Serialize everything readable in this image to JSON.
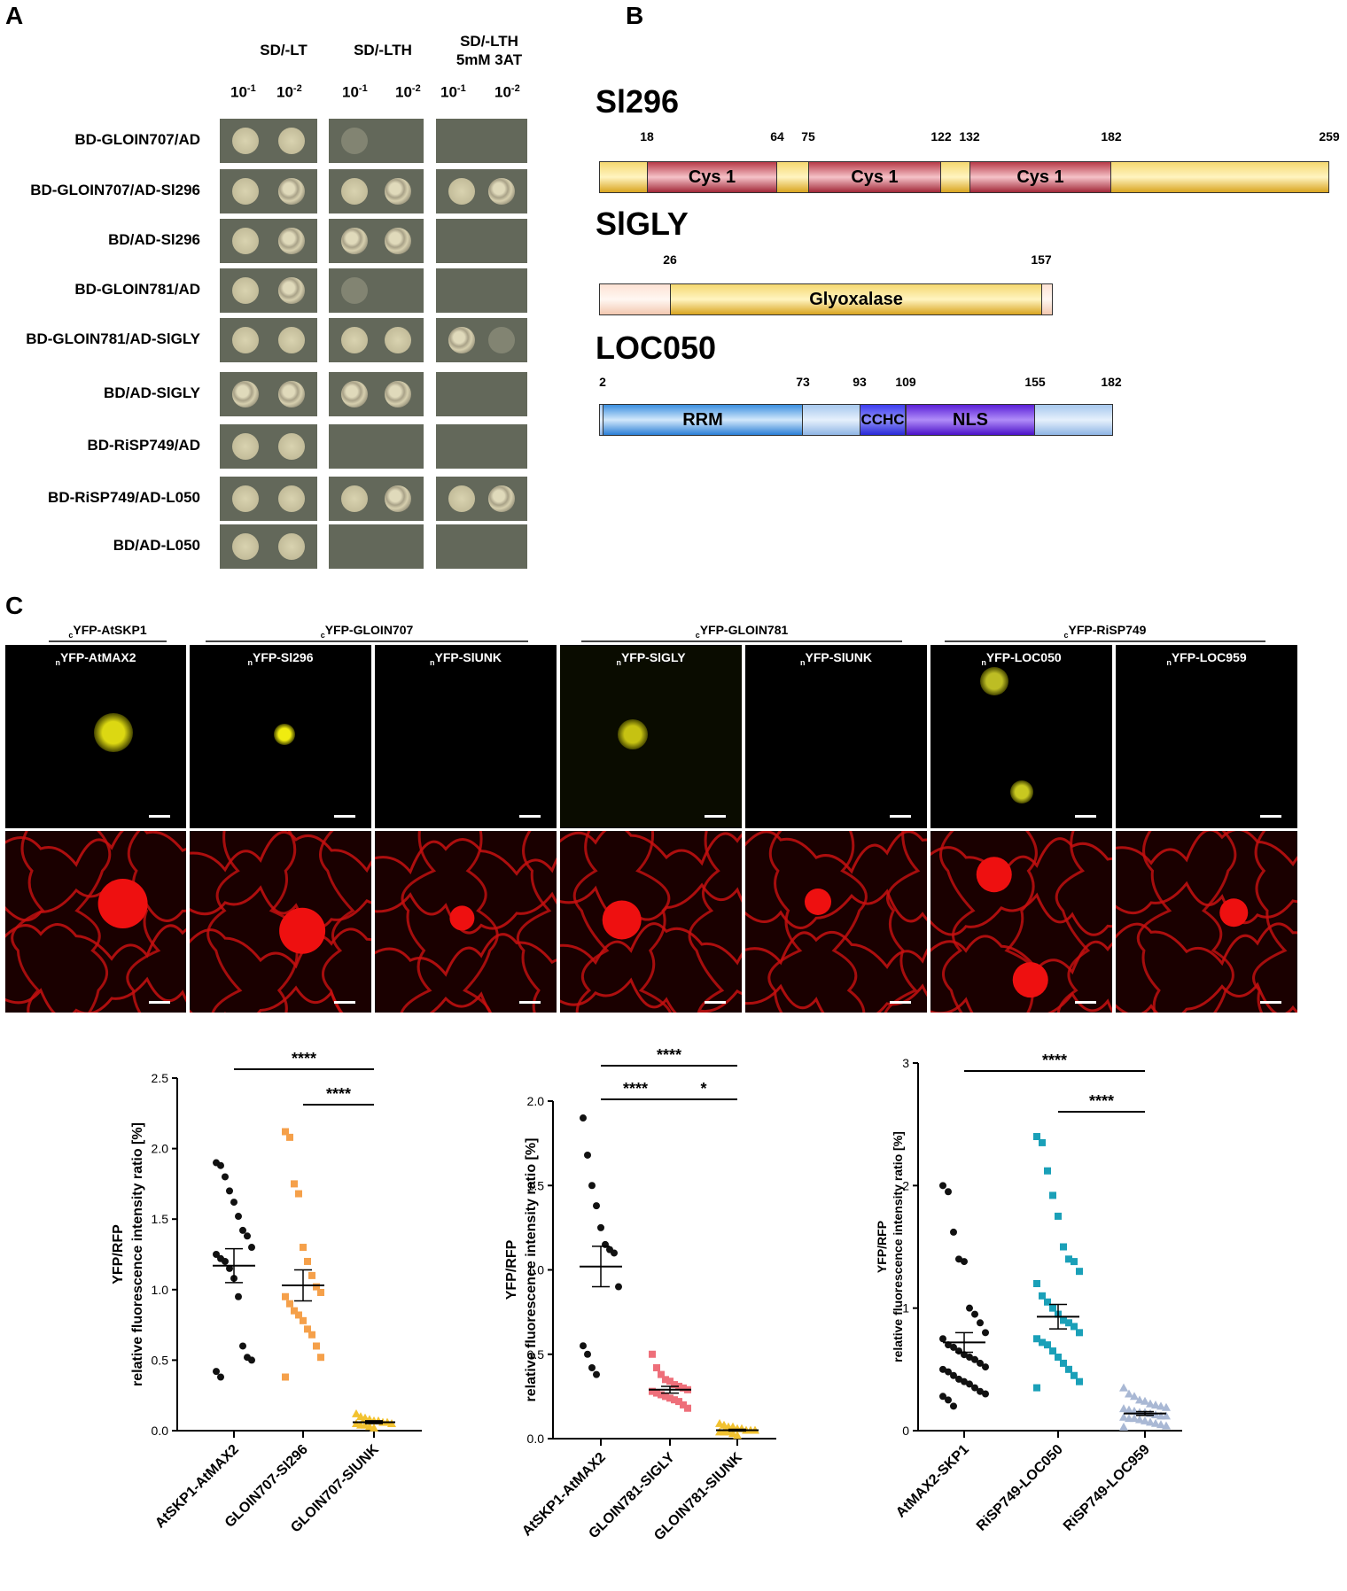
{
  "panel_a": {
    "label": "A",
    "col_headers": [
      "SD/-LT",
      "SD/-LTH",
      "SD/-LTH\n5mM 3AT"
    ],
    "dilution_base": "10",
    "dilution_exp": [
      "-1",
      "-2"
    ],
    "rows": [
      "BD-GLOIN707/AD",
      "BD-GLOIN707/AD-Sl296",
      "BD/AD-Sl296",
      "BD-GLOIN781/AD",
      "BD-GLOIN781/AD-SlGLY",
      "BD/AD-SlGLY",
      "BD-RiSP749/AD",
      "BD-RiSP749/AD-L050",
      "BD/AD-L050"
    ]
  },
  "panel_b": {
    "label": "B",
    "proteins": [
      {
        "name": "Sl296",
        "ticks": [
          "18",
          "64",
          "75",
          "122",
          "132",
          "182",
          "259"
        ],
        "domains": [
          "Cys 1",
          "Cys 1",
          "Cys 1"
        ]
      },
      {
        "name": "SlGLY",
        "ticks": [
          "26",
          "157"
        ],
        "domains": [
          "Glyoxalase"
        ]
      },
      {
        "name": "LOC050",
        "ticks": [
          "2",
          "73",
          "93",
          "109",
          "155",
          "182"
        ],
        "domains": [
          "RRM",
          "CCHC",
          "NLS"
        ]
      }
    ]
  },
  "panel_c": {
    "label": "C",
    "groups": [
      {
        "prefix": "c",
        "text": "YFP-AtSKP1"
      },
      {
        "prefix": "c",
        "text": "YFP-GLOIN707"
      },
      {
        "prefix": "c",
        "text": "YFP-GLOIN781"
      },
      {
        "prefix": "c",
        "text": "YFP-RiSP749"
      }
    ],
    "images": [
      {
        "prefix": "n",
        "text": "YFP-AtMAX2"
      },
      {
        "prefix": "n",
        "text": "YFP-Sl296"
      },
      {
        "prefix": "n",
        "text": "YFP-SlUNK"
      },
      {
        "prefix": "n",
        "text": "YFP-SlGLY"
      },
      {
        "prefix": "n",
        "text": "YFP-SlUNK"
      },
      {
        "prefix": "n",
        "text": "YFP-LOC050"
      },
      {
        "prefix": "n",
        "text": "YFP-LOC959"
      }
    ]
  },
  "chart_data": [
    {
      "type": "scatter",
      "ylabel": "YFP/RFP\nrelative fluorescence intensity ratio [%]",
      "ylim": [
        0,
        2.5
      ],
      "yticks": [
        "0.0",
        "0.5",
        "1.0",
        "1.5",
        "2.0",
        "2.5"
      ],
      "categories": [
        "AtSKP1-AtMAX2",
        "GLOIN707-Sl296",
        "GLOIN707-SlUNK"
      ],
      "colors": [
        "#111111",
        "#f5a04a",
        "#f2c230"
      ],
      "markers": [
        "circle",
        "square",
        "triangle"
      ],
      "series": [
        {
          "values": [
            1.9,
            1.88,
            1.8,
            1.7,
            1.62,
            1.52,
            1.42,
            1.38,
            1.3,
            1.25,
            1.22,
            1.2,
            1.15,
            1.08,
            0.95,
            0.6,
            0.52,
            0.5,
            0.42,
            0.38
          ]
        },
        {
          "values": [
            2.12,
            2.08,
            1.75,
            1.68,
            1.3,
            1.2,
            1.1,
            1.02,
            0.98,
            0.95,
            0.9,
            0.85,
            0.82,
            0.78,
            0.72,
            0.68,
            0.6,
            0.52,
            0.38
          ]
        },
        {
          "values": [
            0.12,
            0.1,
            0.09,
            0.08,
            0.07,
            0.07,
            0.06,
            0.06,
            0.05,
            0.05,
            0.04,
            0.04,
            0.03,
            0.02
          ]
        }
      ],
      "mean": [
        1.17,
        1.03,
        0.06
      ],
      "sem": [
        0.12,
        0.11,
        0.01
      ],
      "significance": [
        {
          "from": 0,
          "to": 2,
          "label": "****"
        },
        {
          "from": 1,
          "to": 2,
          "label": "****"
        }
      ]
    },
    {
      "type": "scatter",
      "ylabel": "YFP/RFP\nrelative fluorescence intensity ratio [%]",
      "ylim": [
        0,
        2.0
      ],
      "yticks": [
        "0.0",
        "0.5",
        "1.0",
        "1.5",
        "2.0"
      ],
      "categories": [
        "AtSKP1-AtMAX2",
        "GLOIN781-SlGLY",
        "GLOIN781-SlUNK"
      ],
      "colors": [
        "#111111",
        "#ee6f7a",
        "#f2c230"
      ],
      "markers": [
        "circle",
        "square",
        "triangle"
      ],
      "series": [
        {
          "values": [
            1.9,
            1.68,
            1.5,
            1.38,
            1.25,
            1.15,
            1.12,
            1.1,
            0.9,
            0.55,
            0.5,
            0.42,
            0.38
          ]
        },
        {
          "values": [
            0.5,
            0.42,
            0.38,
            0.35,
            0.34,
            0.32,
            0.31,
            0.3,
            0.29,
            0.28,
            0.27,
            0.26,
            0.25,
            0.24,
            0.23,
            0.22,
            0.2,
            0.18
          ]
        },
        {
          "values": [
            0.09,
            0.08,
            0.07,
            0.07,
            0.06,
            0.06,
            0.05,
            0.05,
            0.05,
            0.04,
            0.04,
            0.04,
            0.03,
            0.02
          ]
        }
      ],
      "mean": [
        1.02,
        0.29,
        0.05
      ],
      "sem": [
        0.12,
        0.02,
        0.005
      ],
      "significance": [
        {
          "from": 0,
          "to": 2,
          "label": "****"
        },
        {
          "from": 0,
          "to": 1,
          "label": "****"
        },
        {
          "from": 1,
          "to": 2,
          "label": "*"
        }
      ]
    },
    {
      "type": "scatter",
      "ylabel": "YFP/RFP\nrelative fluorescence intensity ratio [%]",
      "ylim": [
        0,
        3
      ],
      "yticks": [
        "0",
        "1",
        "2",
        "3"
      ],
      "categories": [
        "AtMAX2-SKP1",
        "RiSP749-LOC050",
        "RiSP749-LOC959"
      ],
      "colors": [
        "#111111",
        "#1aa0b8",
        "#a9b8d4"
      ],
      "markers": [
        "circle",
        "square",
        "triangle"
      ],
      "series": [
        {
          "values": [
            2.0,
            1.95,
            1.62,
            1.4,
            1.38,
            1.0,
            0.95,
            0.88,
            0.8,
            0.75,
            0.7,
            0.68,
            0.65,
            0.62,
            0.6,
            0.58,
            0.55,
            0.52,
            0.5,
            0.48,
            0.45,
            0.42,
            0.4,
            0.38,
            0.35,
            0.32,
            0.3,
            0.28,
            0.25,
            0.2
          ]
        },
        {
          "values": [
            2.4,
            2.35,
            2.12,
            1.92,
            1.75,
            1.5,
            1.4,
            1.38,
            1.3,
            1.2,
            1.1,
            1.05,
            1.0,
            0.95,
            0.9,
            0.88,
            0.85,
            0.8,
            0.75,
            0.72,
            0.7,
            0.65,
            0.6,
            0.55,
            0.5,
            0.45,
            0.4,
            0.35
          ]
        },
        {
          "values": [
            0.35,
            0.3,
            0.28,
            0.25,
            0.24,
            0.22,
            0.21,
            0.2,
            0.19,
            0.18,
            0.17,
            0.16,
            0.15,
            0.15,
            0.14,
            0.13,
            0.12,
            0.12,
            0.11,
            0.1,
            0.1,
            0.09,
            0.08,
            0.07,
            0.06,
            0.05,
            0.04,
            0.03
          ]
        }
      ],
      "mean": [
        0.72,
        0.93,
        0.14
      ],
      "sem": [
        0.08,
        0.1,
        0.015
      ],
      "significance": [
        {
          "from": 0,
          "to": 2,
          "label": "****"
        },
        {
          "from": 1,
          "to": 2,
          "label": "****"
        }
      ]
    }
  ]
}
